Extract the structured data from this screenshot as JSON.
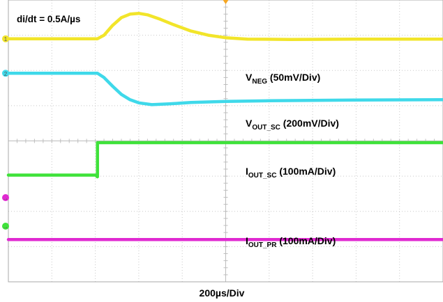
{
  "chart_data": {
    "type": "line",
    "annotation": "di/dt = 0.5A/µs",
    "xlabel": "200µs/Div",
    "grid": true,
    "x_divisions": 10,
    "y_divisions": 8,
    "xlim": [
      0,
      10
    ],
    "ylim": [
      0,
      8
    ],
    "series": [
      {
        "name_main": "V",
        "name_sub": "NEG",
        "scale": " (50mV/Div)",
        "color": "#f2e52a",
        "marker": "1",
        "points": [
          [
            0,
            6.9
          ],
          [
            2.05,
            6.9
          ],
          [
            2.2,
            7.0
          ],
          [
            2.4,
            7.28
          ],
          [
            2.6,
            7.5
          ],
          [
            2.8,
            7.6
          ],
          [
            3.0,
            7.62
          ],
          [
            3.2,
            7.58
          ],
          [
            3.5,
            7.45
          ],
          [
            3.8,
            7.3
          ],
          [
            4.2,
            7.12
          ],
          [
            4.6,
            7.0
          ],
          [
            5.0,
            6.93
          ],
          [
            5.5,
            6.89
          ],
          [
            6.5,
            6.88
          ],
          [
            8.0,
            6.89
          ],
          [
            10,
            6.89
          ]
        ]
      },
      {
        "name_main": "V",
        "name_sub": "OUT_SC",
        "scale": " (200mV/Div)",
        "color": "#3fd9ea",
        "marker": "2",
        "points": [
          [
            0,
            5.92
          ],
          [
            2.05,
            5.92
          ],
          [
            2.2,
            5.8
          ],
          [
            2.4,
            5.55
          ],
          [
            2.6,
            5.32
          ],
          [
            2.8,
            5.17
          ],
          [
            3.0,
            5.08
          ],
          [
            3.3,
            5.03
          ],
          [
            3.7,
            5.05
          ],
          [
            4.2,
            5.09
          ],
          [
            5.0,
            5.12
          ],
          [
            6.0,
            5.14
          ],
          [
            7.0,
            5.15
          ],
          [
            8.0,
            5.16
          ],
          [
            10,
            5.17
          ]
        ]
      },
      {
        "name_main": "I",
        "name_sub": "OUT_SC",
        "scale": " (100mA/Div)",
        "color": "#3fe23a",
        "marker": "",
        "points": [
          [
            0,
            3.03
          ],
          [
            2.03,
            3.03
          ],
          [
            2.03,
            3.0
          ],
          [
            2.05,
            2.98
          ],
          [
            2.05,
            3.95
          ],
          [
            2.08,
            3.95
          ],
          [
            10,
            3.95
          ]
        ]
      },
      {
        "name_main": "I",
        "name_sub": "OUT_PR",
        "scale": " (100mA/Div)",
        "color": "#e02ad1",
        "marker": "",
        "points": [
          [
            0,
            1.2
          ],
          [
            10,
            1.2
          ]
        ]
      }
    ],
    "ch_markers": [
      {
        "glyph": "1",
        "color": "#f2e52a"
      },
      {
        "glyph": "2",
        "color": "#3fd9ea"
      },
      {
        "glyph": "→",
        "color": "#e02ad1"
      },
      {
        "glyph": "→",
        "color": "#3fe23a"
      }
    ]
  }
}
